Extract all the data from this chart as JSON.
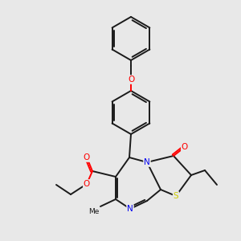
{
  "background_color": "#e8e8e8",
  "bond_color": "#1a1a1a",
  "atom_colors": {
    "O": "#ff0000",
    "N": "#0000ee",
    "S": "#cccc00"
  },
  "figsize": [
    3.0,
    3.0
  ],
  "dpi": 100
}
